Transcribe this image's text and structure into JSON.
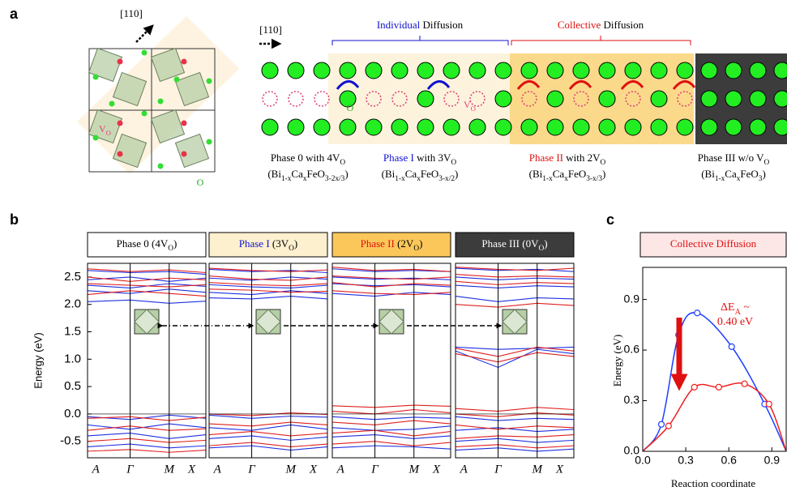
{
  "panel_a": {
    "label": "a",
    "dir_left": "[110]",
    "dir_right": "[110]",
    "lattice_vo": [
      {
        "t": "V"
      },
      {
        "t": "O",
        "sub": true
      }
    ],
    "lattice_o": "O",
    "row_o": "O",
    "row_vo": [
      {
        "t": "V"
      },
      {
        "t": "O",
        "sub": true
      }
    ],
    "individual": [
      {
        "t": "Individual",
        "color": "#1010d0"
      },
      {
        "t": " Diffusion"
      }
    ],
    "collective": [
      {
        "t": "Collective",
        "color": "#e01010"
      },
      {
        "t": " Diffusion"
      }
    ],
    "phases": [
      {
        "name": [
          {
            "t": "Phase 0 with 4V"
          },
          {
            "t": "O",
            "sub": true
          }
        ],
        "formula": [
          {
            "t": "(Bi"
          },
          {
            "t": "1-x",
            "sub": true
          },
          {
            "t": "Ca"
          },
          {
            "t": "x",
            "sub": true
          },
          {
            "t": "FeO"
          },
          {
            "t": "3-2x/3",
            "sub": true
          },
          {
            "t": ")"
          }
        ]
      },
      {
        "name": [
          {
            "t": "Phase I",
            "color": "#1010d0"
          },
          {
            "t": " with 3V"
          },
          {
            "t": "O",
            "sub": true
          }
        ],
        "formula": [
          {
            "t": "(Bi"
          },
          {
            "t": "1-x",
            "sub": true
          },
          {
            "t": "Ca"
          },
          {
            "t": "x",
            "sub": true
          },
          {
            "t": "FeO"
          },
          {
            "t": "3-x/2",
            "sub": true
          },
          {
            "t": ")"
          }
        ]
      },
      {
        "name": [
          {
            "t": "Phase II",
            "color": "#e01010"
          },
          {
            "t": " with 2V"
          },
          {
            "t": "O",
            "sub": true
          }
        ],
        "formula": [
          {
            "t": "(Bi"
          },
          {
            "t": "1-x",
            "sub": true
          },
          {
            "t": "Ca"
          },
          {
            "t": "x",
            "sub": true
          },
          {
            "t": "FeO"
          },
          {
            "t": "3-x/3",
            "sub": true
          },
          {
            "t": ")"
          }
        ]
      },
      {
        "name": [
          {
            "t": "Phase III w/o V"
          },
          {
            "t": "O",
            "sub": true
          }
        ],
        "formula": [
          {
            "t": "(Bi"
          },
          {
            "t": "1-x",
            "sub": true
          },
          {
            "t": "Ca"
          },
          {
            "t": "x",
            "sub": true
          },
          {
            "t": "FeO"
          },
          {
            "t": "3",
            "sub": true
          },
          {
            "t": ")"
          }
        ]
      }
    ]
  },
  "panel_b": {
    "label": "b",
    "y_label": "Energy (eV)",
    "ylim": [
      -0.8,
      2.75
    ],
    "yticks": [
      -0.5,
      {
        "value": 0,
        "label": "0.0"
      },
      0.5,
      {
        "value": 1,
        "label": "1.0"
      },
      1.5,
      {
        "value": 2,
        "label": "2.0"
      },
      2.5
    ],
    "kpoints": [
      "A",
      "Γ",
      "M",
      "X"
    ],
    "plots": [
      {
        "header": [
          {
            "t": "Phase 0 (4V"
          },
          {
            "t": "O",
            "sub": true
          },
          {
            "t": ")"
          }
        ],
        "header_color": "#ffffff",
        "blue": [
          [
            2.62,
            2.58,
            2.6,
            2.55
          ],
          [
            2.45,
            2.5,
            2.42,
            2.48
          ],
          [
            2.35,
            2.3,
            2.38,
            2.33
          ],
          [
            2.25,
            2.2,
            2.28,
            2.22
          ],
          [
            2.05,
            2.08,
            2.02,
            2.06
          ],
          [
            -0.05,
            -0.1,
            -0.02,
            -0.08
          ],
          [
            -0.2,
            -0.28,
            -0.18,
            -0.25
          ],
          [
            -0.4,
            -0.35,
            -0.45,
            -0.38
          ],
          [
            -0.6,
            -0.55,
            -0.62,
            -0.58
          ]
        ],
        "red": [
          [
            2.65,
            2.6,
            2.63,
            2.58
          ],
          [
            2.5,
            2.42,
            2.48,
            2.45
          ],
          [
            2.38,
            2.35,
            2.32,
            2.36
          ],
          [
            2.18,
            2.25,
            2.2,
            2.15
          ],
          [
            -0.08,
            -0.05,
            -0.12,
            -0.06
          ],
          [
            -0.3,
            -0.22,
            -0.3,
            -0.27
          ],
          [
            -0.5,
            -0.45,
            -0.52,
            -0.48
          ],
          [
            -0.68,
            -0.65,
            -0.7,
            -0.66
          ]
        ]
      },
      {
        "header": [
          {
            "t": "Phase I",
            "color": "#1010d0"
          },
          {
            "t": " (3V"
          },
          {
            "t": "O",
            "sub": true
          },
          {
            "t": ")"
          }
        ],
        "header_color": "#fdf0cf",
        "blue": [
          [
            2.64,
            2.6,
            2.62,
            2.58
          ],
          [
            2.48,
            2.44,
            2.5,
            2.46
          ],
          [
            2.36,
            2.32,
            2.3,
            2.35
          ],
          [
            2.22,
            2.18,
            2.25,
            2.2
          ],
          [
            2.12,
            2.1,
            2.15,
            2.1
          ],
          [
            -0.02,
            -0.08,
            -0.04,
            -0.06
          ],
          [
            -0.25,
            -0.3,
            -0.2,
            -0.28
          ],
          [
            -0.45,
            -0.4,
            -0.48,
            -0.42
          ],
          [
            -0.62,
            -0.58,
            -0.66,
            -0.6
          ]
        ],
        "red": [
          [
            2.66,
            2.62,
            2.6,
            2.63
          ],
          [
            2.52,
            2.46,
            2.44,
            2.5
          ],
          [
            2.4,
            2.36,
            2.34,
            2.38
          ],
          [
            2.28,
            2.26,
            2.22,
            2.24
          ],
          [
            0.0,
            -0.03,
            0.02,
            -0.01
          ],
          [
            -0.18,
            -0.22,
            -0.15,
            -0.2
          ],
          [
            -0.38,
            -0.32,
            -0.4,
            -0.35
          ],
          [
            -0.58,
            -0.52,
            -0.6,
            -0.55
          ]
        ]
      },
      {
        "header": [
          {
            "t": "Phase II",
            "color": "#e01010"
          },
          {
            "t": " (2V"
          },
          {
            "t": "O",
            "sub": true
          },
          {
            "t": ")"
          }
        ],
        "header_color": "#fbc75a",
        "blue": [
          [
            2.65,
            2.6,
            2.62,
            2.6
          ],
          [
            2.5,
            2.46,
            2.48,
            2.45
          ],
          [
            2.38,
            2.34,
            2.36,
            2.32
          ],
          [
            2.2,
            2.15,
            2.22,
            2.18
          ],
          [
            -0.05,
            -0.1,
            -0.06,
            -0.08
          ],
          [
            -0.25,
            -0.3,
            -0.28,
            -0.22
          ],
          [
            -0.42,
            -0.38,
            -0.45,
            -0.4
          ],
          [
            -0.62,
            -0.58,
            -0.6,
            -0.64
          ]
        ],
        "red": [
          [
            2.68,
            2.62,
            2.64,
            2.6
          ],
          [
            2.52,
            2.48,
            2.46,
            2.5
          ],
          [
            2.4,
            2.32,
            2.38,
            2.35
          ],
          [
            2.25,
            2.2,
            2.18,
            2.22
          ],
          [
            0.15,
            0.12,
            0.16,
            0.14
          ],
          [
            0.05,
            0.0,
            0.08,
            0.02
          ],
          [
            -0.15,
            -0.2,
            -0.12,
            -0.18
          ],
          [
            -0.35,
            -0.3,
            -0.4,
            -0.32
          ],
          [
            -0.55,
            -0.5,
            -0.58,
            -0.52
          ]
        ]
      },
      {
        "header": [
          {
            "t": "Phase III (0V",
            "color": "#ffffff"
          },
          {
            "t": "O",
            "sub": true,
            "color": "#ffffff"
          },
          {
            "t": ")",
            "color": "#ffffff"
          }
        ],
        "header_color": "#3c3c3c",
        "blue": [
          [
            2.66,
            2.62,
            2.64,
            2.6
          ],
          [
            2.5,
            2.45,
            2.48,
            2.46
          ],
          [
            2.35,
            2.3,
            2.34,
            2.32
          ],
          [
            2.15,
            2.05,
            2.12,
            2.1
          ],
          [
            1.22,
            1.18,
            1.2,
            1.22
          ],
          [
            1.15,
            0.85,
            1.18,
            1.1
          ],
          [
            -0.05,
            -0.12,
            -0.08,
            -0.1
          ],
          [
            -0.3,
            -0.25,
            -0.32,
            -0.28
          ],
          [
            -0.5,
            -0.45,
            -0.52,
            -0.48
          ],
          [
            -0.66,
            -0.62,
            -0.68,
            -0.64
          ]
        ],
        "red": [
          [
            2.68,
            2.64,
            2.62,
            2.66
          ],
          [
            2.55,
            2.5,
            2.52,
            2.5
          ],
          [
            2.42,
            2.36,
            2.4,
            2.38
          ],
          [
            2.0,
            1.95,
            2.02,
            1.98
          ],
          [
            1.2,
            1.05,
            1.22,
            1.15
          ],
          [
            1.1,
            0.95,
            1.12,
            1.05
          ],
          [
            0.1,
            0.05,
            0.12,
            0.08
          ],
          [
            0.0,
            -0.05,
            0.02,
            -0.02
          ],
          [
            -0.2,
            -0.28,
            -0.22,
            -0.25
          ],
          [
            -0.45,
            -0.4,
            -0.42,
            -0.38
          ],
          [
            -0.6,
            -0.56,
            -0.62,
            -0.58
          ]
        ]
      }
    ]
  },
  "panel_c": {
    "label": "c",
    "type": "line",
    "title": "Collective Diffusion",
    "x_label": "Reaction coordinate",
    "y_label": "Energy (eV)",
    "annotation": [
      [
        {
          "t": "ΔE"
        },
        {
          "t": "A",
          "sub": true
        },
        {
          "t": " ~"
        }
      ],
      [
        {
          "t": "0.40 eV"
        }
      ]
    ],
    "xlim": [
      0,
      1
    ],
    "ylim": [
      0,
      1.09
    ],
    "xticks": [
      {
        "value": 0,
        "label": "0.0"
      },
      0.3,
      0.6,
      0.9
    ],
    "yticks": [
      {
        "value": 0,
        "label": "0.0"
      },
      0.3,
      0.6,
      0.9
    ],
    "series": [
      {
        "color": "#1f3fff",
        "x": [
          0,
          0.13,
          0.25,
          0.38,
          0.62,
          0.85,
          1
        ],
        "values": [
          0,
          0.16,
          0.69,
          0.82,
          0.62,
          0.28,
          0
        ]
      },
      {
        "color": "#ee2020",
        "x": [
          0,
          0.18,
          0.36,
          0.53,
          0.71,
          0.88,
          1
        ],
        "values": [
          0,
          0.15,
          0.38,
          0.38,
          0.4,
          0.28,
          0
        ]
      }
    ]
  }
}
